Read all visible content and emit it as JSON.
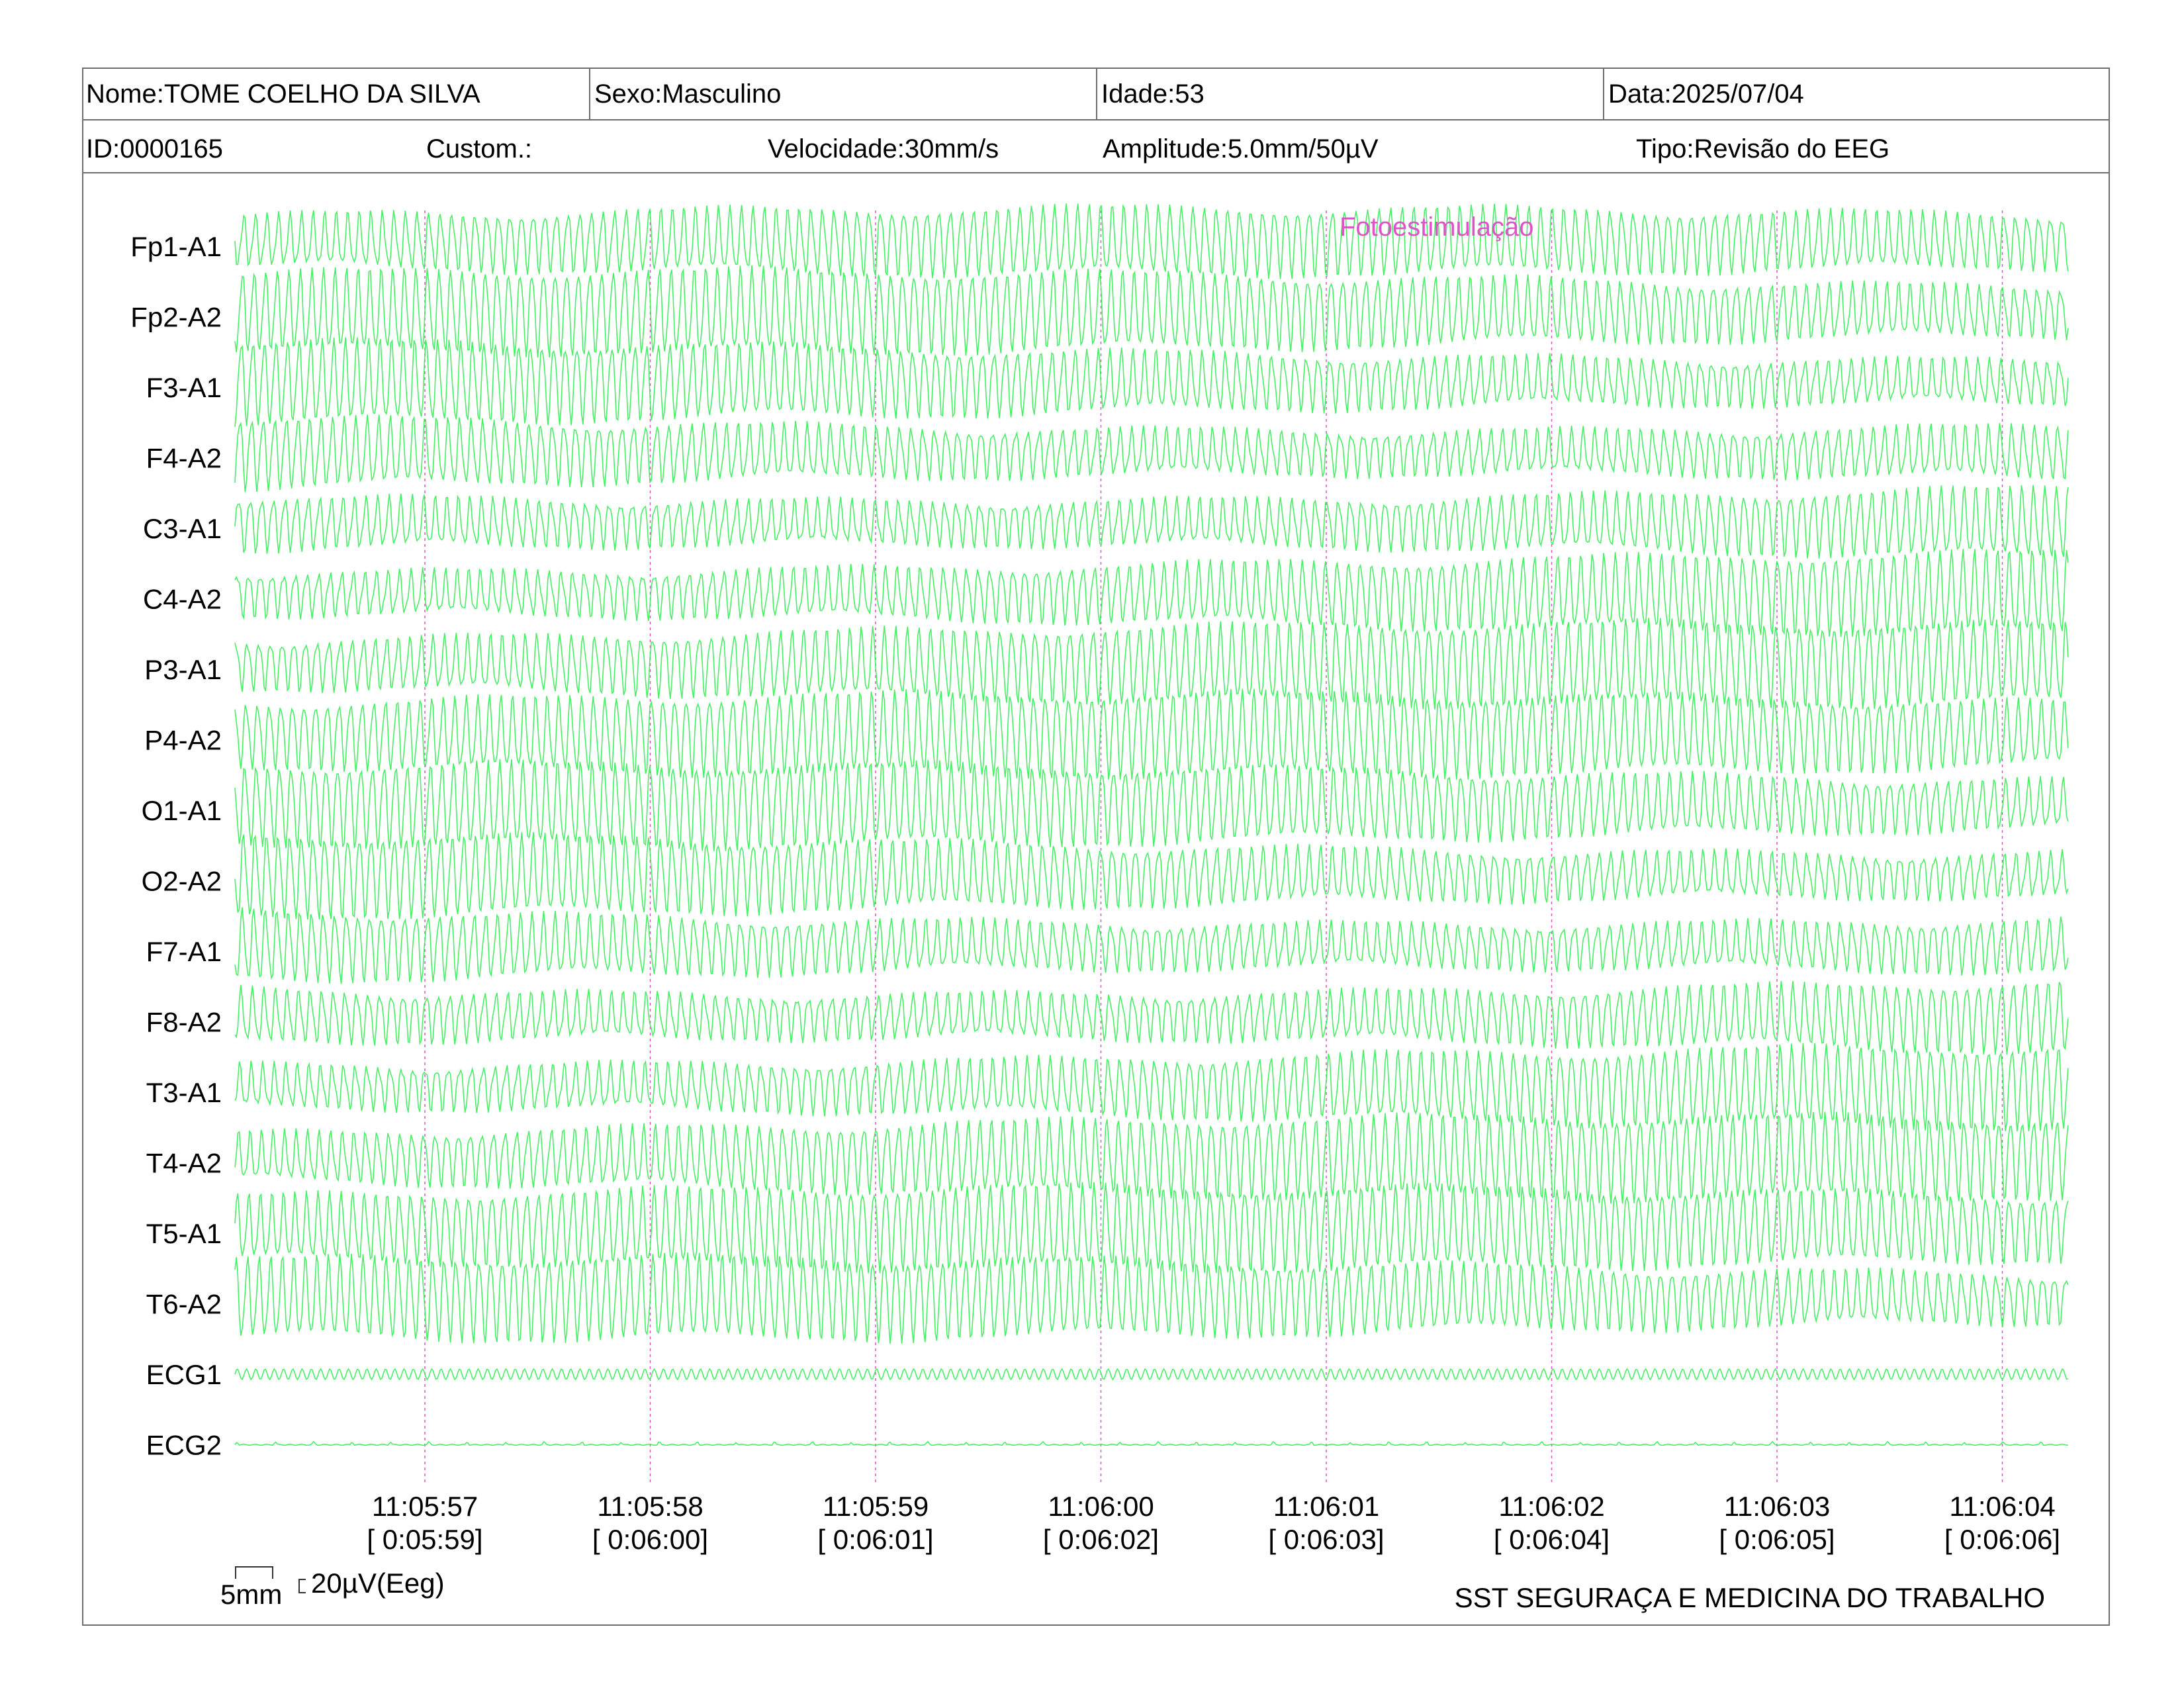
{
  "header": {
    "name": "Nome:TOME COELHO DA SILVA",
    "sex": "Sexo:Masculino",
    "age": "Idade:53",
    "date": "Data:2025/07/04",
    "id": "ID:0000165",
    "custom": "Custom.:",
    "speed": "Velocidade:30mm/s",
    "amplitude": "Amplitude:5.0mm/50µV",
    "type": "Tipo:Revisão do EEG"
  },
  "scale": {
    "time_label": "5mm",
    "amp_label": "20µV(Eeg)"
  },
  "footer": "SST SEGURAÇA E MEDICINA DO TRABALHO",
  "colors": {
    "trace": "#33ee55",
    "marker": "#e052c8",
    "border": "#6e6e6e"
  },
  "chart_data": {
    "type": "line",
    "title": "",
    "xlabel": "",
    "ylabel": "",
    "channels": [
      "Fp1-A1",
      "Fp2-A2",
      "F3-A1",
      "F4-A2",
      "C3-A1",
      "C4-A2",
      "P3-A1",
      "P4-A2",
      "O1-A1",
      "O2-A2",
      "F7-A1",
      "F8-A2",
      "T3-A1",
      "T4-A2",
      "T5-A1",
      "T6-A2",
      "ECG1",
      "ECG2"
    ],
    "x_ticks": [
      {
        "time": "11:05:57",
        "elapsed": "[ 0:05:59]"
      },
      {
        "time": "11:05:58",
        "elapsed": "[ 0:06:00]"
      },
      {
        "time": "11:05:59",
        "elapsed": "[ 0:06:01]"
      },
      {
        "time": "11:06:00",
        "elapsed": "[ 0:06:02]"
      },
      {
        "time": "11:06:01",
        "elapsed": "[ 0:06:03]"
      },
      {
        "time": "11:06:02",
        "elapsed": "[ 0:06:04]"
      },
      {
        "time": "11:06:03",
        "elapsed": "[ 0:06:05]"
      },
      {
        "time": "11:06:04",
        "elapsed": "[ 0:06:06]"
      }
    ],
    "events": [
      {
        "label": "Fotoestimulação",
        "time": "11:06:01"
      }
    ],
    "grid": "vertical dashed lines at each second"
  }
}
